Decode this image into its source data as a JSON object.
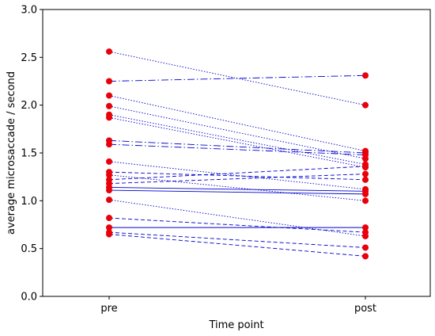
{
  "chart_data": {
    "type": "line",
    "title": "",
    "xlabel": "Time point",
    "ylabel": "average microsaccade / second",
    "categories": [
      "pre",
      "post"
    ],
    "ylim": [
      0.0,
      3.0
    ],
    "yticks": [
      "0.0",
      "0.5",
      "1.0",
      "1.5",
      "2.0",
      "2.5",
      "3.0"
    ],
    "grid": false,
    "legend": "none",
    "line_color": "#0000cc",
    "marker_color": "#e8000b",
    "series": [
      {
        "values": [
          2.56,
          2.0
        ],
        "style": "dotted"
      },
      {
        "values": [
          2.25,
          2.31
        ],
        "style": "dashdot"
      },
      {
        "values": [
          2.1,
          1.52
        ],
        "style": "dotted"
      },
      {
        "values": [
          1.99,
          1.44
        ],
        "style": "dotted"
      },
      {
        "values": [
          1.9,
          1.38
        ],
        "style": "dotted"
      },
      {
        "values": [
          1.87,
          1.35
        ],
        "style": "dotted"
      },
      {
        "values": [
          1.63,
          1.5
        ],
        "style": "dashdot"
      },
      {
        "values": [
          1.59,
          1.48
        ],
        "style": "dashdot"
      },
      {
        "values": [
          1.41,
          1.12
        ],
        "style": "dotted"
      },
      {
        "values": [
          1.3,
          1.22
        ],
        "style": "dashed"
      },
      {
        "values": [
          1.27,
          1.0
        ],
        "style": "dotted"
      },
      {
        "values": [
          1.22,
          1.36
        ],
        "style": "dashed"
      },
      {
        "values": [
          1.18,
          1.28
        ],
        "style": "dashed"
      },
      {
        "values": [
          1.14,
          1.1
        ],
        "style": "solid"
      },
      {
        "values": [
          1.11,
          1.07
        ],
        "style": "solid"
      },
      {
        "values": [
          1.01,
          0.63
        ],
        "style": "dotted"
      },
      {
        "values": [
          0.82,
          0.67
        ],
        "style": "dashed"
      },
      {
        "values": [
          0.72,
          0.72
        ],
        "style": "solid"
      },
      {
        "values": [
          0.67,
          0.51
        ],
        "style": "dashed"
      },
      {
        "values": [
          0.65,
          0.42
        ],
        "style": "dashed"
      }
    ]
  }
}
